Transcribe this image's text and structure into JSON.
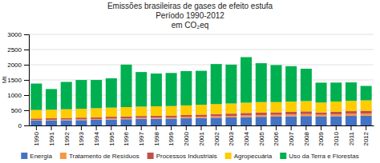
{
  "chart_data": {
    "type": "bar",
    "stacked": true,
    "title": "Emissões brasileiras de gases de efeito estufa\nPeríodo 1990-2012\nem CO₂eq",
    "ylabel": "Mt",
    "categories": [
      "1990",
      "1991",
      "1992",
      "1993",
      "1994",
      "1995",
      "1996",
      "1997",
      "1998",
      "1999",
      "2000",
      "2001",
      "2002",
      "2003",
      "2004",
      "2005",
      "2006",
      "2007",
      "2008",
      "2009",
      "2010",
      "2011",
      "2012"
    ],
    "series": [
      {
        "name": "Energia",
        "color": "#4472c4",
        "values": [
          160,
          165,
          170,
          175,
          185,
          195,
          205,
          215,
          220,
          225,
          235,
          245,
          255,
          265,
          275,
          285,
          290,
          300,
          310,
          290,
          305,
          315,
          325
        ]
      },
      {
        "name": "Tratamento de Resíduos",
        "color": "#f79646",
        "values": [
          20,
          22,
          24,
          26,
          28,
          30,
          32,
          35,
          38,
          40,
          42,
          45,
          48,
          50,
          55,
          58,
          60,
          62,
          65,
          62,
          65,
          67,
          70
        ]
      },
      {
        "name": "Processos Industriais",
        "color": "#c0504d",
        "values": [
          50,
          52,
          55,
          57,
          60,
          62,
          62,
          62,
          62,
          62,
          65,
          68,
          72,
          75,
          82,
          85,
          82,
          87,
          90,
          75,
          85,
          90,
          90
        ]
      },
      {
        "name": "Agropecuária",
        "color": "#ffcc00",
        "values": [
          280,
          280,
          285,
          290,
          295,
          300,
          305,
          308,
          310,
          312,
          318,
          322,
          328,
          333,
          338,
          342,
          338,
          338,
          338,
          328,
          332,
          338,
          342
        ]
      },
      {
        "name": "Uso da Terra e Florestas",
        "color": "#00b050",
        "values": [
          870,
          680,
          900,
          950,
          930,
          965,
          1400,
          1140,
          1080,
          1090,
          1130,
          1120,
          1320,
          1280,
          1500,
          1280,
          1220,
          1165,
          1065,
          655,
          625,
          608,
          475
        ]
      }
    ],
    "ylim": [
      0,
      3000
    ],
    "yticks": [
      0,
      500,
      1000,
      1500,
      2000,
      2500,
      3000
    ],
    "grid": true,
    "legend": "bottom"
  }
}
